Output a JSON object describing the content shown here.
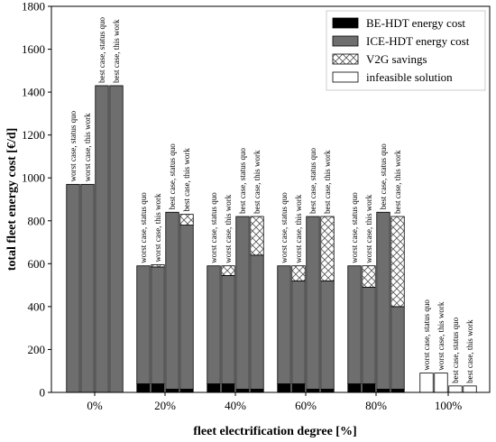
{
  "chart_data": {
    "type": "bar",
    "xlabel": "fleet electrification degree [%]",
    "ylabel": "total fleet energy cost [€/d]",
    "ylim": [
      0,
      1800
    ],
    "yticks": [
      0,
      200,
      400,
      600,
      800,
      1000,
      1200,
      1400,
      1600,
      1800
    ],
    "categories": [
      "0%",
      "20%",
      "40%",
      "60%",
      "80%",
      "100%"
    ],
    "scenarios": [
      "worst case, status quo",
      "worst case, this work",
      "best case, status quo",
      "best case, this work"
    ],
    "legend": {
      "position": "top-right",
      "entries": [
        {
          "key": "be",
          "label": "BE-HDT energy cost",
          "color": "#000000"
        },
        {
          "key": "ice",
          "label": "ICE-HDT energy cost",
          "color": "#6e6e6e"
        },
        {
          "key": "v2g",
          "label": "V2G savings",
          "pattern": "crosshatch"
        },
        {
          "key": "infeasible",
          "label": "infeasible solution",
          "color": "#ffffff"
        }
      ]
    },
    "groups": [
      {
        "category": "0%",
        "bars": [
          {
            "scenario": "worst case, status quo",
            "be": 0,
            "ice": 970,
            "v2g": 0,
            "infeasible": 0
          },
          {
            "scenario": "worst case, this work",
            "be": 0,
            "ice": 970,
            "v2g": 0,
            "infeasible": 0
          },
          {
            "scenario": "best case, status quo",
            "be": 0,
            "ice": 1430,
            "v2g": 0,
            "infeasible": 0
          },
          {
            "scenario": "best case, this work",
            "be": 0,
            "ice": 1430,
            "v2g": 0,
            "infeasible": 0
          }
        ]
      },
      {
        "category": "20%",
        "bars": [
          {
            "scenario": "worst case, status quo",
            "be": 40,
            "ice": 550,
            "v2g": 0,
            "infeasible": 0
          },
          {
            "scenario": "worst case, this work",
            "be": 40,
            "ice": 545,
            "v2g": 10,
            "infeasible": 0
          },
          {
            "scenario": "best case, status quo",
            "be": 15,
            "ice": 825,
            "v2g": 0,
            "infeasible": 0
          },
          {
            "scenario": "best case, this work",
            "be": 15,
            "ice": 765,
            "v2g": 50,
            "infeasible": 0
          }
        ]
      },
      {
        "category": "40%",
        "bars": [
          {
            "scenario": "worst case, status quo",
            "be": 40,
            "ice": 550,
            "v2g": 0,
            "infeasible": 0
          },
          {
            "scenario": "worst case, this work",
            "be": 40,
            "ice": 505,
            "v2g": 45,
            "infeasible": 0
          },
          {
            "scenario": "best case, status quo",
            "be": 15,
            "ice": 805,
            "v2g": 0,
            "infeasible": 0
          },
          {
            "scenario": "best case, this work",
            "be": 15,
            "ice": 625,
            "v2g": 180,
            "infeasible": 0
          }
        ]
      },
      {
        "category": "60%",
        "bars": [
          {
            "scenario": "worst case, status quo",
            "be": 40,
            "ice": 550,
            "v2g": 0,
            "infeasible": 0
          },
          {
            "scenario": "worst case, this work",
            "be": 40,
            "ice": 480,
            "v2g": 70,
            "infeasible": 0
          },
          {
            "scenario": "best case, status quo",
            "be": 15,
            "ice": 805,
            "v2g": 0,
            "infeasible": 0
          },
          {
            "scenario": "best case, this work",
            "be": 15,
            "ice": 505,
            "v2g": 300,
            "infeasible": 0
          }
        ]
      },
      {
        "category": "80%",
        "bars": [
          {
            "scenario": "worst case, status quo",
            "be": 40,
            "ice": 550,
            "v2g": 0,
            "infeasible": 0
          },
          {
            "scenario": "worst case, this work",
            "be": 40,
            "ice": 450,
            "v2g": 100,
            "infeasible": 0
          },
          {
            "scenario": "best case, status quo",
            "be": 15,
            "ice": 825,
            "v2g": 0,
            "infeasible": 0
          },
          {
            "scenario": "best case, this work",
            "be": 15,
            "ice": 385,
            "v2g": 420,
            "infeasible": 0
          }
        ]
      },
      {
        "category": "100%",
        "bars": [
          {
            "scenario": "worst case, status quo",
            "be": 0,
            "ice": 0,
            "v2g": 0,
            "infeasible": 90
          },
          {
            "scenario": "worst case, this work",
            "be": 0,
            "ice": 0,
            "v2g": 0,
            "infeasible": 90
          },
          {
            "scenario": "best case, status quo",
            "be": 0,
            "ice": 0,
            "v2g": 0,
            "infeasible": 30
          },
          {
            "scenario": "best case, this work",
            "be": 0,
            "ice": 0,
            "v2g": 0,
            "infeasible": 30
          }
        ]
      }
    ]
  }
}
